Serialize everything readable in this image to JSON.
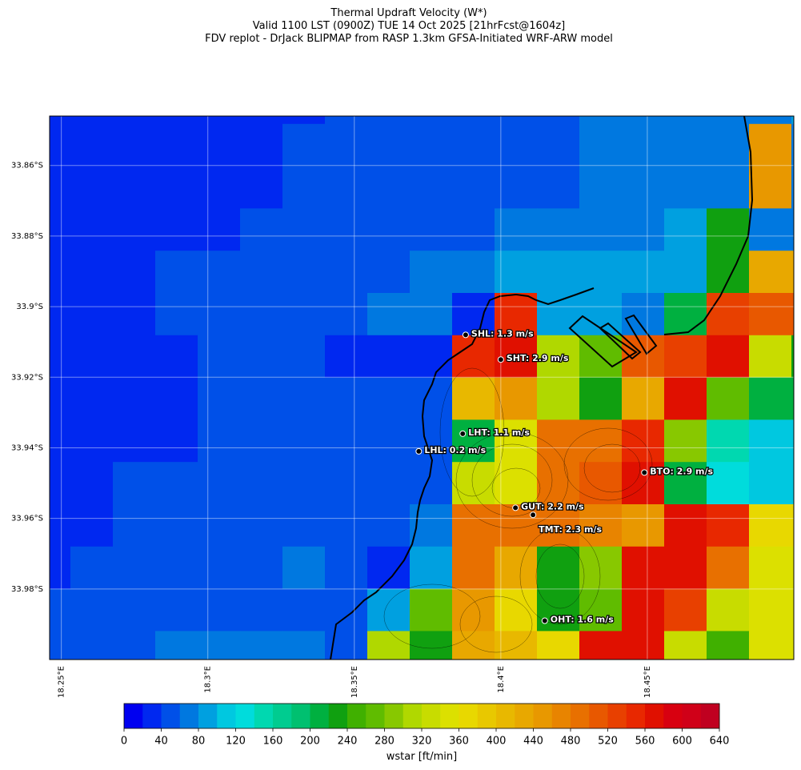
{
  "chart_data": {
    "type": "heatmap",
    "title": [
      "Thermal Updraft Velocity (W*)",
      "Valid 1100 LST (0900Z) TUE 14 Oct 2025 [21hrFcst@1604z]",
      "FDV replot - DrJack BLIPMAP from RASP 1.3km GFSA-Initiated WRF-ARW model"
    ],
    "xlim": [
      18.246,
      18.5
    ],
    "ylim": [
      -34.0,
      -33.846
    ],
    "xticks": [
      {
        "value": 18.25,
        "label": "18.25°E"
      },
      {
        "value": 18.3,
        "label": "18.3°E"
      },
      {
        "value": 18.35,
        "label": "18.35°E"
      },
      {
        "value": 18.4,
        "label": "18.4°E"
      },
      {
        "value": 18.45,
        "label": "18.45°E"
      }
    ],
    "yticks": [
      {
        "value": -33.86,
        "label": "33.86°S"
      },
      {
        "value": -33.88,
        "label": "33.88°S"
      },
      {
        "value": -33.9,
        "label": "33.9°S"
      },
      {
        "value": -33.92,
        "label": "33.92°S"
      },
      {
        "value": -33.94,
        "label": "33.94°S"
      },
      {
        "value": -33.96,
        "label": "33.96°S"
      },
      {
        "value": -33.98,
        "label": "33.98°S"
      }
    ],
    "grid": true,
    "values": [
      [
        30,
        30,
        30,
        30,
        30,
        30,
        30,
        50,
        50,
        50,
        50,
        50,
        50,
        70,
        70,
        70,
        70,
        70,
        90
      ],
      [
        30,
        30,
        30,
        30,
        30,
        30,
        50,
        50,
        50,
        50,
        50,
        50,
        50,
        70,
        70,
        70,
        70,
        450,
        70
      ],
      [
        30,
        30,
        30,
        30,
        30,
        30,
        50,
        50,
        50,
        50,
        50,
        50,
        50,
        70,
        70,
        70,
        70,
        450,
        70
      ],
      [
        30,
        30,
        30,
        30,
        30,
        50,
        50,
        50,
        50,
        50,
        50,
        70,
        70,
        70,
        70,
        90,
        230,
        70,
        70
      ],
      [
        30,
        30,
        30,
        50,
        50,
        50,
        50,
        50,
        50,
        70,
        70,
        90,
        90,
        90,
        90,
        90,
        230,
        430,
        430
      ],
      [
        30,
        30,
        30,
        50,
        50,
        50,
        50,
        50,
        70,
        70,
        30,
        550,
        90,
        90,
        70,
        210,
        530,
        510,
        510
      ],
      [
        30,
        30,
        30,
        30,
        50,
        50,
        50,
        30,
        30,
        30,
        550,
        570,
        310,
        270,
        510,
        530,
        570,
        330,
        230
      ],
      [
        30,
        30,
        30,
        30,
        50,
        50,
        50,
        50,
        50,
        50,
        410,
        450,
        310,
        230,
        430,
        570,
        270,
        210,
        210
      ],
      [
        30,
        30,
        30,
        30,
        50,
        50,
        50,
        50,
        50,
        50,
        210,
        350,
        490,
        490,
        550,
        290,
        150,
        110,
        110
      ],
      [
        30,
        30,
        50,
        50,
        50,
        50,
        50,
        50,
        50,
        50,
        330,
        350,
        490,
        510,
        570,
        210,
        130,
        110,
        110
      ],
      [
        30,
        30,
        50,
        50,
        50,
        50,
        50,
        50,
        50,
        70,
        490,
        490,
        490,
        470,
        450,
        570,
        550,
        370,
        370
      ],
      [
        30,
        50,
        50,
        50,
        50,
        50,
        70,
        50,
        30,
        90,
        490,
        430,
        230,
        290,
        570,
        570,
        490,
        350,
        350
      ],
      [
        50,
        50,
        50,
        50,
        50,
        50,
        50,
        50,
        90,
        270,
        450,
        370,
        230,
        270,
        570,
        530,
        330,
        350,
        350
      ],
      [
        50,
        50,
        50,
        70,
        70,
        70,
        70,
        50,
        310,
        230,
        430,
        410,
        370,
        570,
        570,
        330,
        250,
        350,
        350
      ]
    ],
    "colorbar": {
      "label": "wstar [ft/min]",
      "clim": [
        0,
        640
      ],
      "ticks": [
        0,
        40,
        80,
        120,
        160,
        200,
        240,
        280,
        320,
        360,
        400,
        440,
        480,
        520,
        560,
        600,
        640
      ],
      "colors": [
        "#0000f0",
        "#0028f0",
        "#0050e8",
        "#0078e0",
        "#00a0e0",
        "#00c8e0",
        "#00dcdc",
        "#00d8b0",
        "#00cc90",
        "#00c070",
        "#00b040",
        "#10a010",
        "#40b000",
        "#60bc00",
        "#88c800",
        "#b0d800",
        "#c8dc00",
        "#dce000",
        "#e8d800",
        "#e8c800",
        "#e8b800",
        "#e8a800",
        "#e89800",
        "#e88400",
        "#e87000",
        "#e85800",
        "#e84000",
        "#e82800",
        "#e01000",
        "#d80010",
        "#d00018",
        "#c00020"
      ]
    },
    "stations": [
      {
        "label": "SHL: 1.3 m/s",
        "lon": 18.388,
        "lat": -33.908
      },
      {
        "label": "SHT: 2.9 m/s",
        "lon": 18.4,
        "lat": -33.915
      },
      {
        "label": "LHT: 1.1 m/s",
        "lon": 18.387,
        "lat": -33.936
      },
      {
        "label": "LHL: 0.2 m/s",
        "lon": 18.372,
        "lat": -33.941
      },
      {
        "label": "BTO: 2.9 m/s",
        "lon": 18.449,
        "lat": -33.947
      },
      {
        "label": "GUT: 2.2 m/s",
        "lon": 18.405,
        "lat": -33.957
      },
      {
        "label": "TMT: 2.3 m/s",
        "lon": 18.411,
        "lat": -33.959
      },
      {
        "label": "OHT: 1.6 m/s",
        "lon": 18.415,
        "lat": -33.989
      }
    ]
  }
}
